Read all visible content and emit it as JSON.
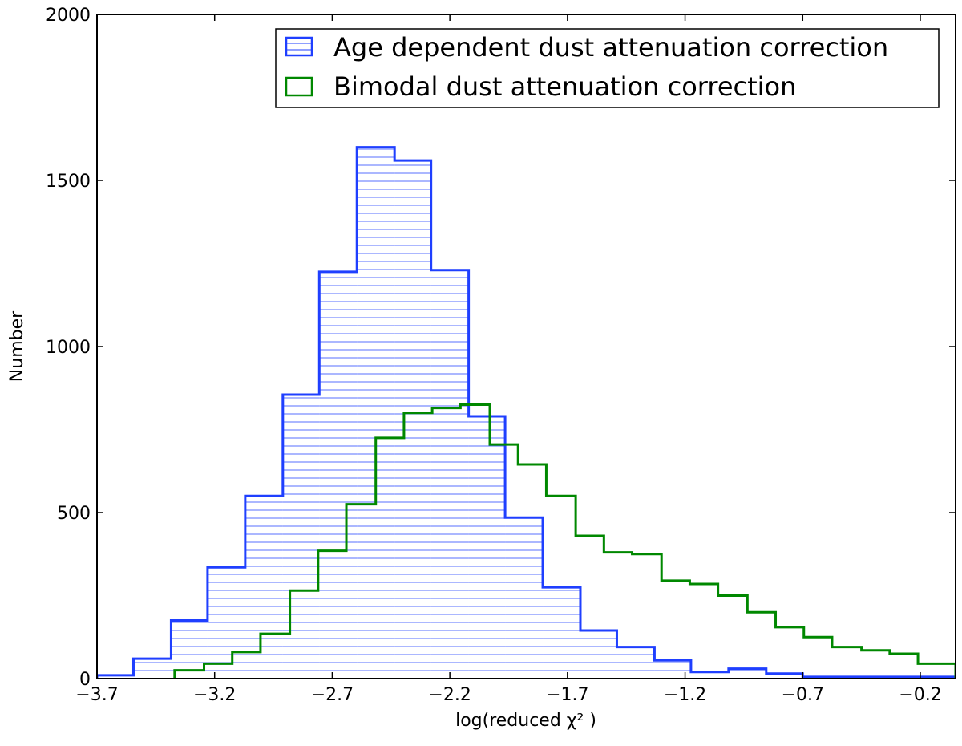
{
  "chart_data": {
    "type": "histogram",
    "xlabel": "log(reduced χ² )",
    "ylabel": "Number",
    "xlim": [
      -3.7,
      -0.05
    ],
    "ylim": [
      0,
      2000
    ],
    "xticks": [
      -3.7,
      -3.2,
      -2.7,
      -2.2,
      -1.7,
      -1.2,
      -0.7,
      -0.2
    ],
    "xtick_labels": [
      "−3.7",
      "−3.2",
      "−2.7",
      "−2.2",
      "−1.7",
      "−1.2",
      "−0.7",
      "−0.2"
    ],
    "yticks": [
      0,
      500,
      1000,
      1500,
      2000
    ],
    "ytick_labels": [
      "0",
      "500",
      "1000",
      "1500",
      "2000"
    ],
    "legend_position": "top-right",
    "grid": false,
    "series": [
      {
        "name": "Age dependent dust attenuation correction",
        "color": "#1f3fff",
        "hatch": "horizontal",
        "bin_edges": [
          -3.7,
          -3.545,
          -3.385,
          -3.23,
          -3.07,
          -2.91,
          -2.755,
          -2.595,
          -2.435,
          -2.28,
          -2.12,
          -1.965,
          -1.805,
          -1.645,
          -1.49,
          -1.33,
          -1.175,
          -1.015,
          -0.855,
          -0.7,
          -0.54,
          -0.38,
          -0.225,
          -0.05
        ],
        "values": [
          10,
          60,
          175,
          335,
          550,
          855,
          1225,
          1600,
          1560,
          1230,
          790,
          485,
          275,
          145,
          95,
          55,
          20,
          30,
          15,
          5,
          5,
          5,
          5
        ]
      },
      {
        "name": "Bimodal dust attenuation correction",
        "color": "#008800",
        "hatch": "none",
        "bin_edges": [
          -3.37,
          -3.245,
          -3.125,
          -3.005,
          -2.88,
          -2.76,
          -2.64,
          -2.515,
          -2.395,
          -2.275,
          -2.155,
          -2.03,
          -1.91,
          -1.79,
          -1.665,
          -1.545,
          -1.425,
          -1.3,
          -1.18,
          -1.06,
          -0.935,
          -0.815,
          -0.695,
          -0.575,
          -0.45,
          -0.33,
          -0.21,
          -0.05
        ],
        "values": [
          25,
          45,
          80,
          135,
          265,
          385,
          525,
          725,
          800,
          815,
          825,
          705,
          645,
          550,
          430,
          380,
          375,
          295,
          285,
          250,
          200,
          155,
          125,
          95,
          85,
          75,
          45
        ]
      }
    ]
  }
}
